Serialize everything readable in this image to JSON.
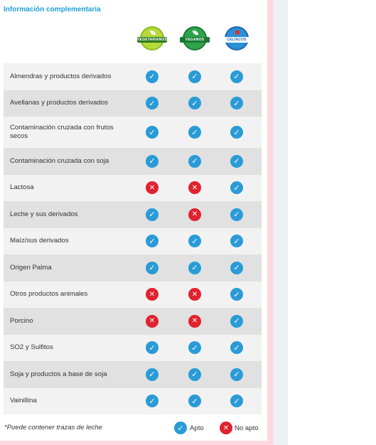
{
  "header": {
    "title": "Información complementaria"
  },
  "badges": [
    {
      "name": "vegetarianos",
      "label": "VEGETARIANOS",
      "icon": "leaf-icon"
    },
    {
      "name": "veganos",
      "label": "VEGANOS",
      "icon": "leaf-icon"
    },
    {
      "name": "celiacos",
      "label": "CELÍACOS",
      "icon": "drop-icon"
    }
  ],
  "rows": [
    {
      "label": "Almendras y productos derivados",
      "values": [
        "ok",
        "ok",
        "ok"
      ]
    },
    {
      "label": "Avellanas y productos derivados",
      "values": [
        "ok",
        "ok",
        "ok"
      ]
    },
    {
      "label": "Contaminación cruzada con frutos secos",
      "values": [
        "ok",
        "ok",
        "ok"
      ]
    },
    {
      "label": "Contaminación cruzada con soja",
      "values": [
        "ok",
        "ok",
        "ok"
      ]
    },
    {
      "label": "Lactosa",
      "values": [
        "no",
        "no",
        "ok"
      ]
    },
    {
      "label": "Leche y sus derivados",
      "values": [
        "ok",
        "no",
        "ok"
      ]
    },
    {
      "label": "Maíz/sus derivados",
      "values": [
        "ok",
        "ok",
        "ok"
      ]
    },
    {
      "label": "Origen Palma",
      "values": [
        "ok",
        "ok",
        "ok"
      ]
    },
    {
      "label": "Otros productos animales",
      "values": [
        "no",
        "no",
        "ok"
      ]
    },
    {
      "label": "Porcino",
      "values": [
        "no",
        "no",
        "ok"
      ]
    },
    {
      "label": "SO2 y Sulfitos",
      "values": [
        "ok",
        "ok",
        "ok"
      ]
    },
    {
      "label": "Soja y productos a base de soja",
      "values": [
        "ok",
        "ok",
        "ok"
      ]
    },
    {
      "label": "Vainillina",
      "values": [
        "ok",
        "ok",
        "ok"
      ]
    }
  ],
  "footer": {
    "note": "*Puede contener trazas de leche",
    "legend_apto": "Apto",
    "legend_no_apto": "No apto"
  },
  "colors": {
    "accent": "#1e9fd6",
    "ok": "#2a9bd6",
    "no": "#e1222f"
  }
}
